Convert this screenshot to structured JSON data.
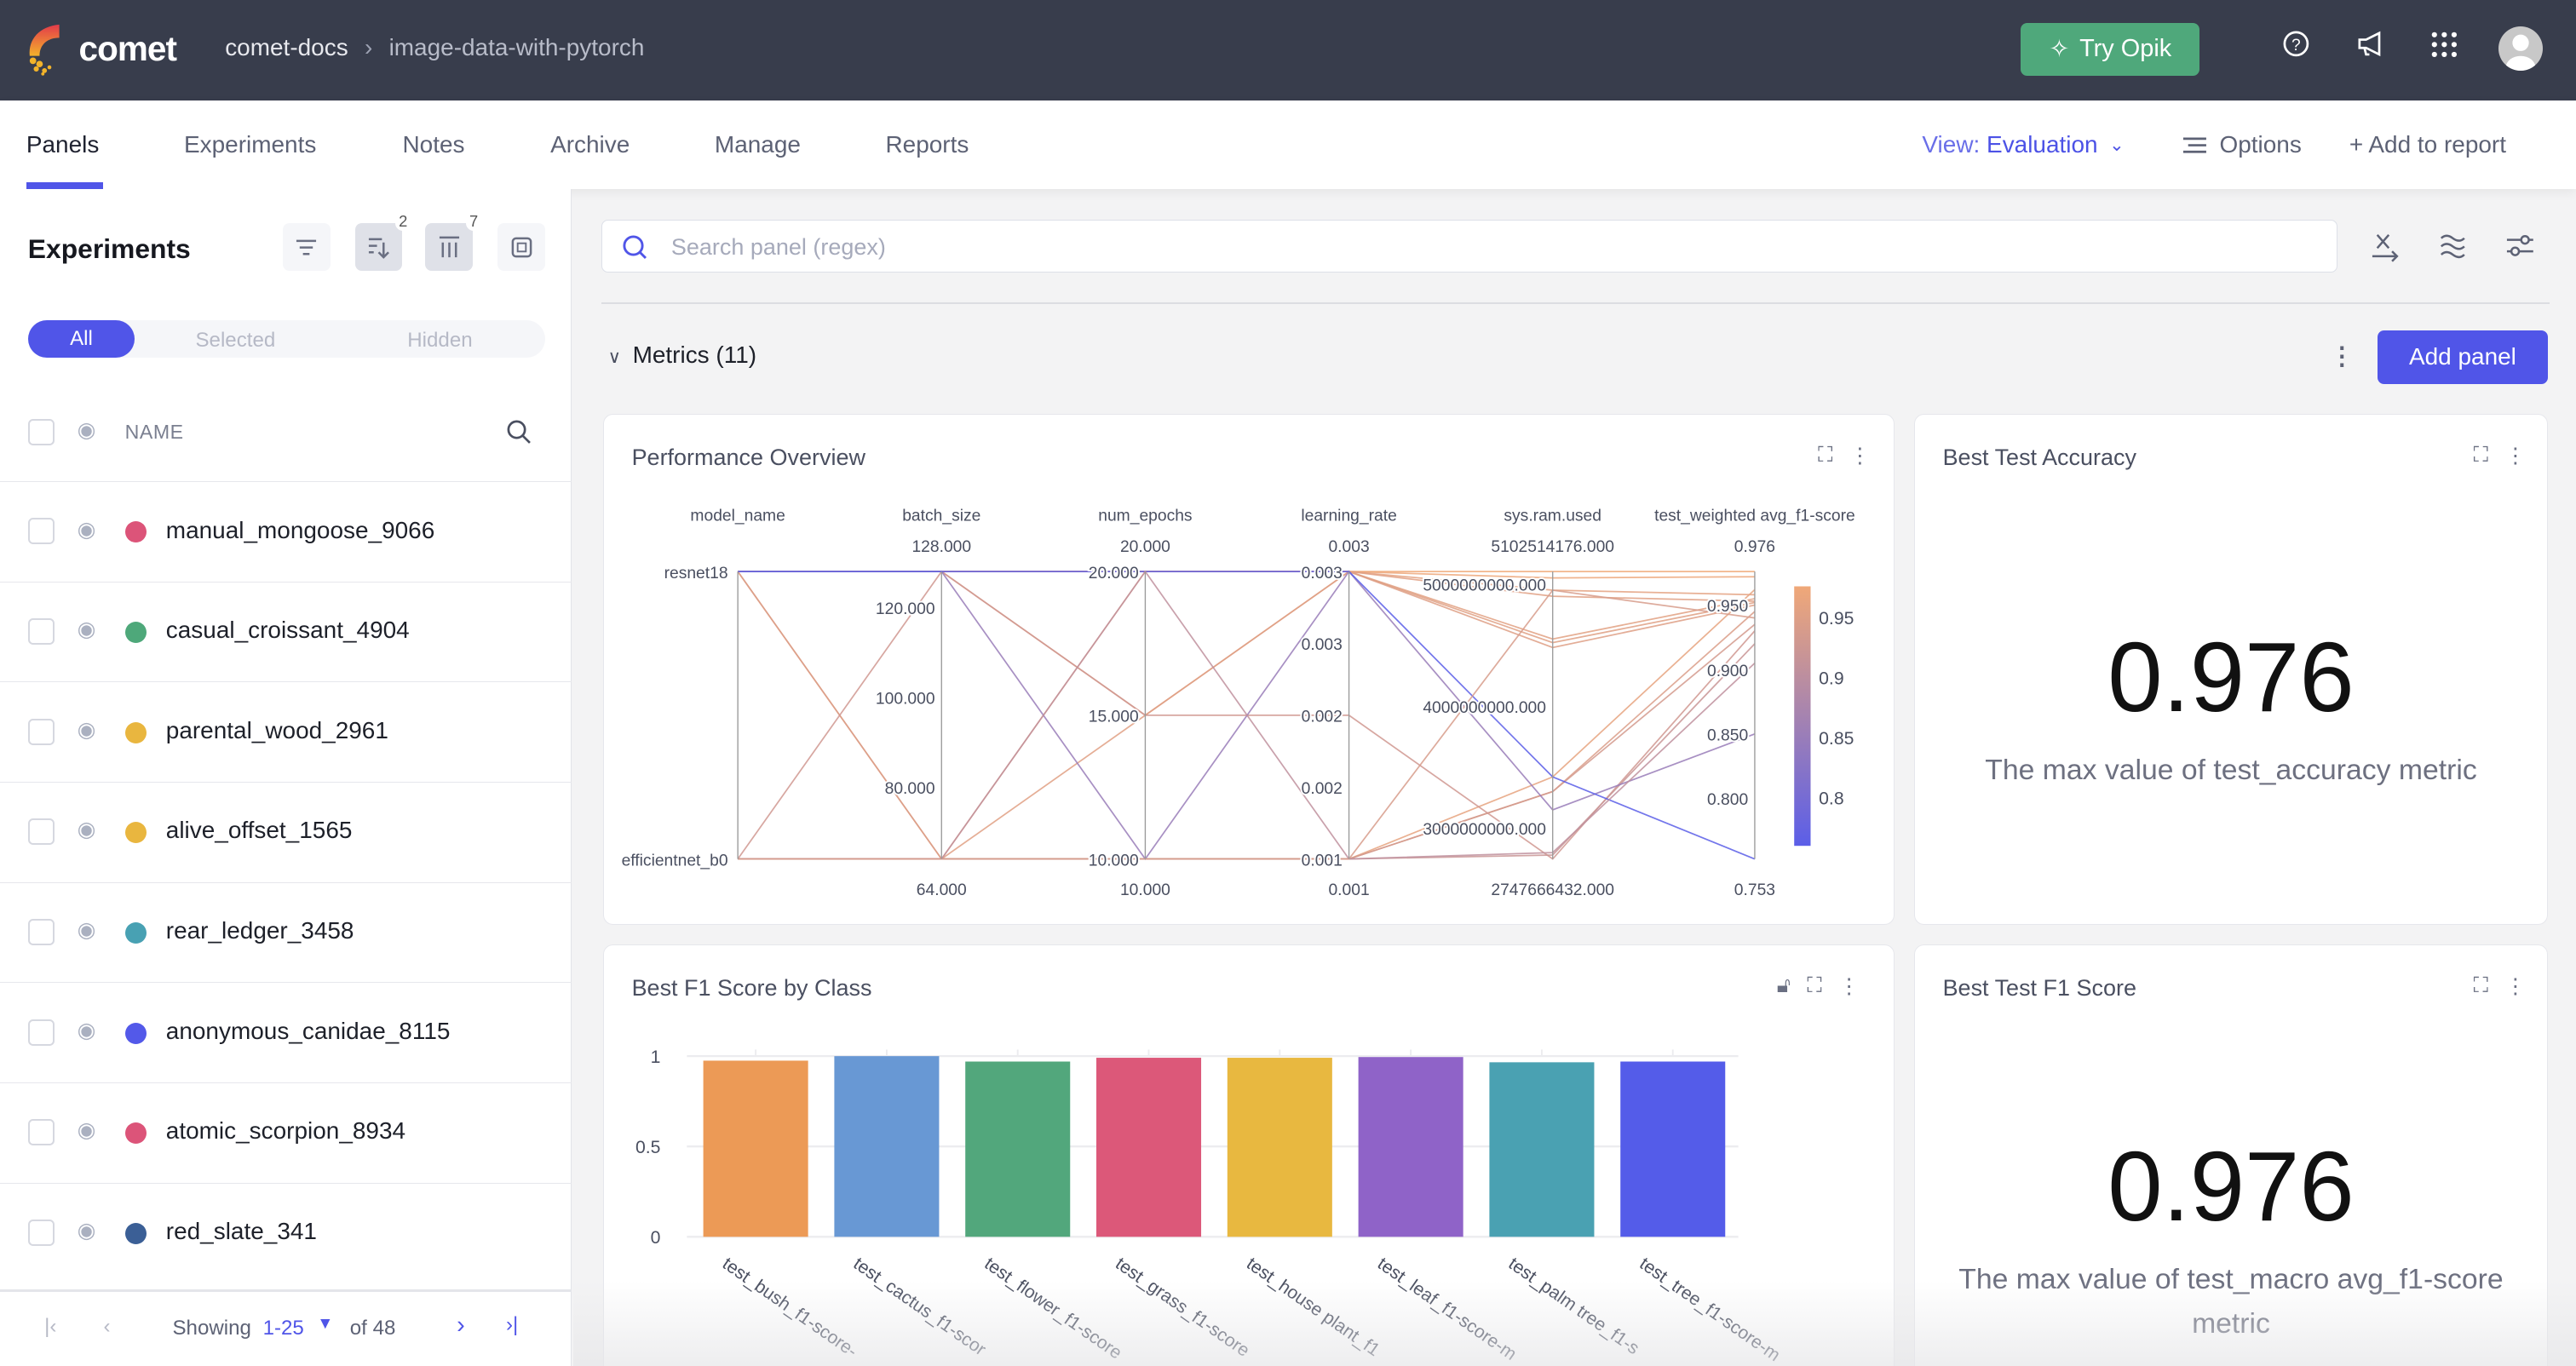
{
  "header": {
    "brand": "comet",
    "breadcrumb": [
      "comet-docs",
      "image-data-with-pytorch"
    ],
    "try_opik": "Try Opik",
    "icons": [
      "help-icon",
      "announcement-icon",
      "apps-grid-icon",
      "avatar"
    ]
  },
  "tabs": [
    {
      "label": "Panels",
      "active": true
    },
    {
      "label": "Experiments"
    },
    {
      "label": "Notes"
    },
    {
      "label": "Archive"
    },
    {
      "label": "Manage"
    },
    {
      "label": "Reports"
    }
  ],
  "toolbar": {
    "view_prefix": "View: ",
    "view_value": "Evaluation",
    "options": "Options",
    "add_to_report": "+ Add to report"
  },
  "sidebar": {
    "title": "Experiments",
    "sort_badge": "2",
    "columns_badge": "7",
    "segments": [
      "All",
      "Selected",
      "Hidden"
    ],
    "column_header": "NAME",
    "experiments": [
      {
        "name": "manual_mongoose_9066",
        "color": "#dc5479"
      },
      {
        "name": "casual_croissant_4904",
        "color": "#4ea87a"
      },
      {
        "name": "parental_wood_2961",
        "color": "#e9b63f"
      },
      {
        "name": "alive_offset_1565",
        "color": "#e9b63f"
      },
      {
        "name": "rear_ledger_3458",
        "color": "#48a1b3"
      },
      {
        "name": "anonymous_canidae_8115",
        "color": "#5359e9"
      },
      {
        "name": "atomic_scorpion_8934",
        "color": "#dc5479"
      },
      {
        "name": "red_slate_341",
        "color": "#3b5f96"
      }
    ],
    "pager": {
      "showing": "Showing",
      "range": "1-25",
      "of": "of 48"
    }
  },
  "main": {
    "search_placeholder": "Search panel (regex)",
    "section": "Metrics (11)",
    "add_panel": "Add panel",
    "accent": "#5055e8"
  },
  "panels": {
    "perf": {
      "title": "Performance Overview"
    },
    "best_acc": {
      "title": "Best Test Accuracy",
      "value": "0.976",
      "caption": "The max value of test_accuracy metric"
    },
    "f1_class": {
      "title": "Best F1 Score by Class"
    },
    "best_f1": {
      "title": "Best Test F1 Score",
      "value": "0.976",
      "caption": "The max value of test_macro avg_f1-score metric"
    }
  },
  "chart_data": [
    {
      "type": "parallel-coordinates",
      "axes": [
        {
          "name": "model_name",
          "categories": [
            "resnet18",
            "efficientnet_b0"
          ]
        },
        {
          "name": "batch_size",
          "range": [
            64,
            128
          ],
          "max_label": "128.000",
          "min_label": "64.000",
          "ticks": [
            "120.000",
            "100.000",
            "80.000"
          ],
          "tick_values": [
            120,
            100,
            80
          ]
        },
        {
          "name": "num_epochs",
          "range": [
            10,
            20
          ],
          "max_label": "20.000",
          "min_label": "10.000",
          "ticks": [
            "20.000",
            "15.000",
            "10.000"
          ],
          "tick_values": [
            20,
            15,
            10
          ]
        },
        {
          "name": "learning_rate",
          "range": [
            0.001,
            0.003
          ],
          "max_label": "0.003",
          "min_label": "0.001",
          "ticks": [
            "0.003",
            "0.003",
            "0.002",
            "0.002",
            "0.001"
          ],
          "tick_values": [
            0.003,
            0.0025,
            0.002,
            0.0015,
            0.001
          ]
        },
        {
          "name": "sys.ram.used",
          "range": [
            2747666432,
            5102514176
          ],
          "max_label": "5102514176.000",
          "min_label": "2747666432.000",
          "ticks": [
            "5000000000.000",
            "4000000000.000",
            "3000000000.000"
          ],
          "tick_values": [
            5000000000,
            4000000000,
            3000000000
          ]
        },
        {
          "name": "test_weighted avg_f1-score",
          "range": [
            0.753,
            0.976
          ],
          "max_label": "0.976",
          "min_label": "0.753",
          "ticks": [
            "0.950",
            "0.900",
            "0.850",
            "0.800"
          ],
          "tick_values": [
            0.95,
            0.9,
            0.85,
            0.8
          ]
        }
      ],
      "colorbar": {
        "ticks": [
          "0.95",
          "0.9",
          "0.85",
          "0.8"
        ],
        "tick_values": [
          0.95,
          0.9,
          0.85,
          0.8
        ],
        "low_color": "#5b5ee8",
        "high_color": "#f0a878"
      },
      "rows": [
        [
          "resnet18",
          128,
          20,
          0.003,
          5102514176,
          0.976
        ],
        [
          "resnet18",
          128,
          20,
          0.003,
          5050000000,
          0.972
        ],
        [
          "resnet18",
          128,
          20,
          0.003,
          4550000000,
          0.955
        ],
        [
          "resnet18",
          128,
          20,
          0.003,
          4520000000,
          0.952
        ],
        [
          "resnet18",
          128,
          15,
          0.003,
          4480000000,
          0.95
        ],
        [
          "efficientnet_b0",
          64,
          20,
          0.003,
          4950000000,
          0.958
        ],
        [
          "efficientnet_b0",
          64,
          15,
          0.003,
          4900000000,
          0.953
        ],
        [
          "resnet18",
          64,
          10,
          0.001,
          3420000000,
          0.962
        ],
        [
          "resnet18",
          64,
          10,
          0.001,
          3300000000,
          0.945
        ],
        [
          "efficientnet_b0",
          64,
          10,
          0.001,
          3300000000,
          0.935
        ],
        [
          "efficientnet_b0",
          128,
          15,
          0.002,
          2747666432,
          0.93
        ],
        [
          "efficientnet_b0",
          64,
          10,
          0.001,
          2780000000,
          0.92
        ],
        [
          "resnet18",
          128,
          10,
          0.003,
          3150000000,
          0.85
        ],
        [
          "resnet18",
          128,
          20,
          0.003,
          3420000000,
          0.753
        ],
        [
          "efficientnet_b0",
          64,
          20,
          0.001,
          2800000000,
          0.905
        ],
        [
          "efficientnet_b0",
          64,
          10,
          0.001,
          4950000000,
          0.94
        ]
      ]
    },
    {
      "type": "bar",
      "title": "Best F1 Score by Class",
      "categories": [
        "test_bush_f1-score-",
        "test_cactus_f1-scor",
        "test_flower_f1-score",
        "test_grass_f1-score",
        "test_house plant_f1",
        "test_leaf_f1-score-m",
        "test_palm tree_f1-s",
        "test_tree_f1-score-m"
      ],
      "values": [
        0.975,
        1.0,
        0.97,
        0.991,
        0.991,
        0.995,
        0.966,
        0.97
      ],
      "colors": [
        "#ec9a56",
        "#6898d4",
        "#52a77c",
        "#dc5879",
        "#e8b840",
        "#8f63c8",
        "#4aa1b2",
        "#545ce9"
      ],
      "yticks": [
        "0",
        "0.5",
        "1"
      ],
      "ytick_values": [
        0,
        0.5,
        1
      ],
      "ylim": [
        0,
        1
      ]
    }
  ]
}
